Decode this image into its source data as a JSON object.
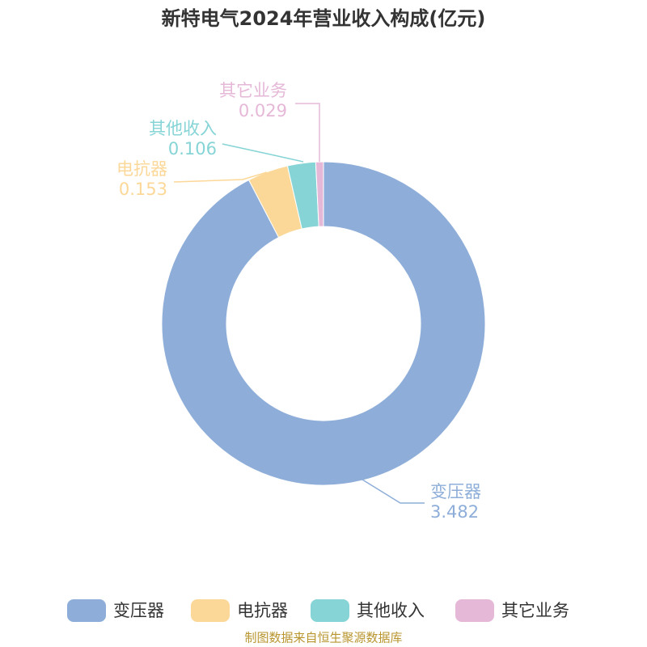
{
  "chart_data": {
    "type": "donut",
    "title": "新特电气2024年营业收入构成(亿元)",
    "categories": [
      "变压器",
      "电抗器",
      "其他收入",
      "其它业务"
    ],
    "values": [
      3.482,
      0.153,
      0.106,
      0.029
    ],
    "colors": [
      "#8eaed9",
      "#fcd898",
      "#86d4d6",
      "#e6b8d8"
    ],
    "source": "制图数据来自恒生聚源数据库"
  }
}
